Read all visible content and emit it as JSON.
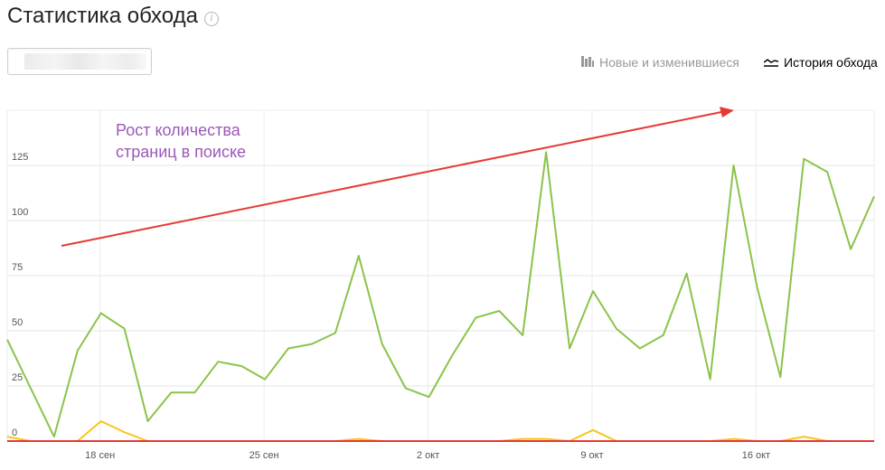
{
  "header": {
    "title": "Статистика обхода",
    "info_icon": "info-icon"
  },
  "site_selector": {
    "value": ""
  },
  "tabs": [
    {
      "label": "Новые и изменившиеся",
      "icon": "bar-chart-icon",
      "active": false
    },
    {
      "label": "История обхода",
      "icon": "line-chart-icon",
      "active": true
    }
  ],
  "annotation": {
    "text_line1": "Рост количества",
    "text_line2": "страниц в поиске",
    "color": "#9b59b6",
    "arrow_color": "#e53935"
  },
  "chart_data": {
    "type": "line",
    "x_tick_labels": [
      "18 сен",
      "25 сен",
      "2 окт",
      "9 окт",
      "16 окт"
    ],
    "y_tick_labels": [
      "0",
      "25",
      "50",
      "75",
      "100",
      "125"
    ],
    "ylim": [
      0,
      150
    ],
    "grid": true,
    "series": [
      {
        "color": "#8bc34a",
        "values": [
          46,
          24,
          2,
          41,
          58,
          51,
          9,
          22,
          22,
          36,
          34,
          28,
          42,
          44,
          49,
          84,
          44,
          24,
          20,
          39,
          56,
          59,
          48,
          131,
          42,
          68,
          51,
          42,
          48,
          76,
          28,
          125,
          70,
          29,
          128,
          122,
          87,
          111
        ]
      },
      {
        "color": "#f9c51b",
        "values": [
          2,
          0,
          0,
          0,
          9,
          4,
          0,
          0,
          0,
          0,
          0,
          0,
          0,
          0,
          0,
          1,
          0,
          0,
          0,
          0,
          0,
          0,
          1,
          1,
          0,
          5,
          0,
          0,
          0,
          0,
          0,
          1,
          0,
          0,
          2,
          0,
          0,
          0
        ]
      },
      {
        "color": "#e53935",
        "values": [
          0,
          0,
          0,
          0,
          0,
          0,
          0,
          0,
          0,
          0,
          0,
          0,
          0,
          0,
          0,
          0,
          0,
          0,
          0,
          0,
          0,
          0,
          0,
          0,
          0,
          0,
          0,
          0,
          0,
          0,
          0,
          0,
          0,
          0,
          0,
          0,
          0,
          0
        ]
      }
    ]
  }
}
